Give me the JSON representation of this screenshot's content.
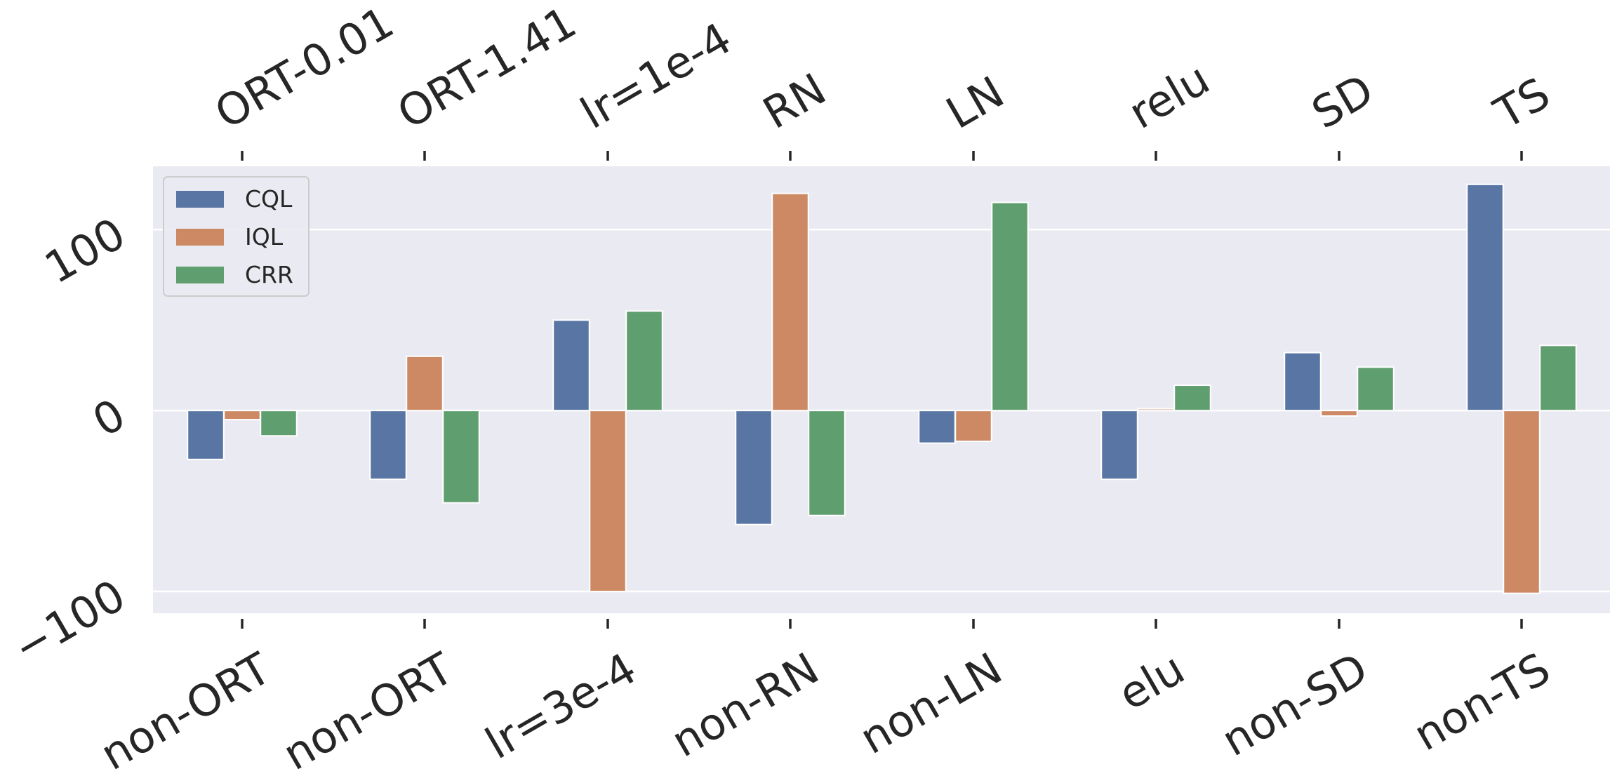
{
  "chart_data": {
    "type": "bar",
    "title": "",
    "xlabel": "",
    "ylabel": "",
    "ylim": [
      -112,
      135
    ],
    "yticks": [
      -100,
      0,
      100
    ],
    "ytick_labels": [
      "−100",
      "0",
      "100"
    ],
    "categories": [
      "non-ORT",
      "non-ORT",
      "lr=3e-4",
      "non-RN",
      "non-LN",
      "elu",
      "non-SD",
      "non-TS"
    ],
    "top_categories": [
      "ORT-0.01",
      "ORT-1.41",
      "lr=1e-4",
      "RN",
      "LN",
      "relu",
      "SD",
      "TS"
    ],
    "series": [
      {
        "name": "CQL",
        "color": "#5875a4",
        "values": [
          -27,
          -38,
          50,
          -63,
          -18,
          -38,
          32,
          125
        ]
      },
      {
        "name": "IQL",
        "color": "#cc8963",
        "values": [
          -5,
          30,
          -100,
          120,
          -17,
          1,
          -3,
          -101
        ]
      },
      {
        "name": "CRR",
        "color": "#5f9e6e",
        "values": [
          -14,
          -51,
          55,
          -58,
          115,
          14,
          24,
          36
        ]
      }
    ],
    "grid": true,
    "legend_position": "upper-left",
    "background_color": "#eaeaf2",
    "grid_color": "#ffffff"
  }
}
